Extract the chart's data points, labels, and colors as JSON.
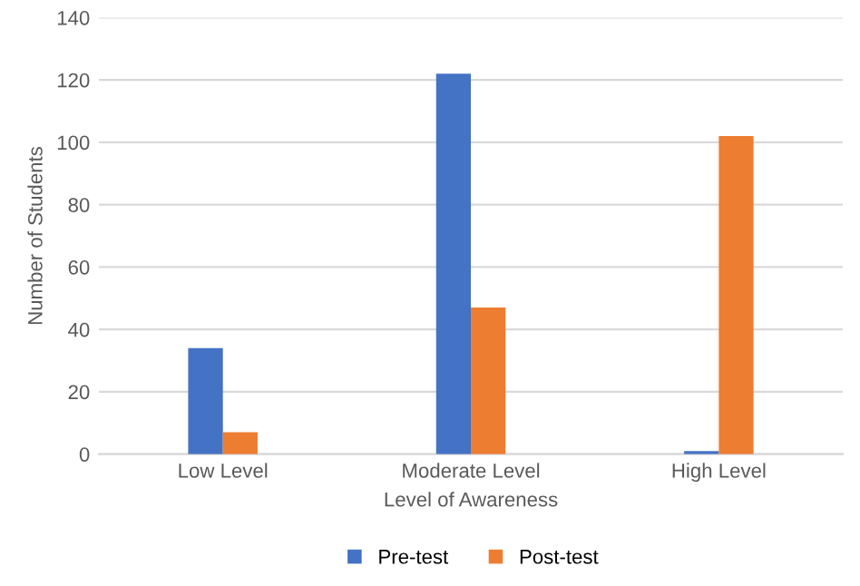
{
  "chart_data": {
    "type": "bar",
    "xlabel": "Level of Awareness",
    "ylabel": "Number of Students",
    "categories": [
      "Low Level",
      "Moderate Level",
      "High Level"
    ],
    "series": [
      {
        "name": "Pre-test",
        "color": "#4472c4",
        "values": [
          34,
          122,
          1
        ]
      },
      {
        "name": "Post-test",
        "color": "#ed7d31",
        "values": [
          7,
          47,
          102
        ]
      }
    ],
    "ylim": [
      0,
      140
    ],
    "yticks": [
      0,
      20,
      40,
      60,
      80,
      100,
      120,
      140
    ],
    "grid": "y",
    "legend": "bottom"
  }
}
